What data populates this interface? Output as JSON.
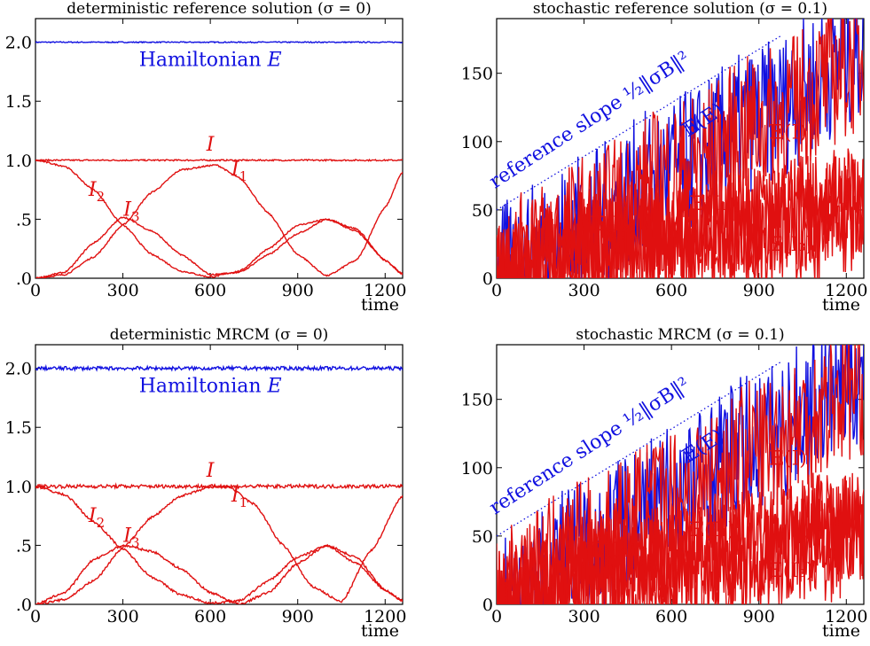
{
  "figure": {
    "colors": {
      "blue": "#1010e0",
      "red": "#e01010",
      "frame": "#000000"
    }
  },
  "chart_data": [
    {
      "id": "tl",
      "type": "line",
      "title": "deterministic reference solution (σ = 0)",
      "xlabel": "time",
      "ylabel": "",
      "xlim": [
        0,
        1260
      ],
      "ylim": [
        0,
        2.2
      ],
      "xticks": [
        0,
        300,
        600,
        900,
        1200
      ],
      "xtick_labels": [
        "0",
        "300",
        "600",
        "900",
        "1200"
      ],
      "yticks": [
        0,
        0.5,
        1.0,
        1.5,
        2.0
      ],
      "ytick_labels": [
        ".0",
        ".5",
        "1.0",
        "1.5",
        "2.0"
      ],
      "series": [
        {
          "name": "Hamiltonian E",
          "color": "blue",
          "noise": 0.003,
          "x": [
            0,
            1260
          ],
          "y": [
            2.0,
            2.0
          ]
        },
        {
          "name": "I",
          "color": "red",
          "noise": 0.004,
          "x": [
            0,
            1260
          ],
          "y": [
            1.0,
            1.0
          ]
        },
        {
          "name": "I1",
          "color": "red",
          "noise": 0.004,
          "x": [
            0,
            100,
            200,
            300,
            400,
            500,
            620,
            700,
            800,
            900,
            1000,
            1100,
            1200,
            1260
          ],
          "y": [
            0.0,
            0.03,
            0.18,
            0.45,
            0.73,
            0.92,
            0.96,
            0.85,
            0.55,
            0.2,
            0.02,
            0.15,
            0.6,
            0.9
          ]
        },
        {
          "name": "I2",
          "color": "red",
          "noise": 0.004,
          "x": [
            0,
            100,
            200,
            300,
            400,
            500,
            600,
            700,
            800,
            900,
            1000,
            1100,
            1200,
            1260
          ],
          "y": [
            1.0,
            0.95,
            0.75,
            0.45,
            0.2,
            0.06,
            0.01,
            0.06,
            0.25,
            0.45,
            0.5,
            0.4,
            0.15,
            0.03
          ]
        },
        {
          "name": "I3",
          "color": "red",
          "noise": 0.004,
          "x": [
            0,
            100,
            200,
            300,
            400,
            500,
            600,
            700,
            800,
            900,
            1000,
            1100,
            1200,
            1260
          ],
          "y": [
            0.0,
            0.05,
            0.3,
            0.52,
            0.4,
            0.2,
            0.03,
            0.05,
            0.2,
            0.38,
            0.5,
            0.42,
            0.15,
            0.04
          ]
        }
      ],
      "annotations": [
        {
          "text": "Hamiltonian",
          "sub": "",
          "italic_tail": "E",
          "color": "blue",
          "x": 600,
          "y": 1.8
        },
        {
          "text": "I",
          "sub": "",
          "color": "red",
          "x": 600,
          "y": 1.08
        },
        {
          "text": "I",
          "sub": "1",
          "color": "red",
          "x": 700,
          "y": 0.87
        },
        {
          "text": "I",
          "sub": "2",
          "color": "red",
          "x": 210,
          "y": 0.7
        },
        {
          "text": "I",
          "sub": "3",
          "color": "red",
          "x": 330,
          "y": 0.53
        }
      ]
    },
    {
      "id": "tr",
      "type": "line",
      "title": "stochastic reference solution (σ = 0.1)",
      "xlabel": "time",
      "ylabel": "",
      "xlim": [
        0,
        1260
      ],
      "ylim": [
        0,
        190
      ],
      "xticks": [
        0,
        300,
        600,
        900,
        1200
      ],
      "xtick_labels": [
        "0",
        "300",
        "600",
        "900",
        "1200"
      ],
      "yticks": [
        0,
        50,
        100,
        150
      ],
      "ytick_labels": [
        "0",
        "50",
        "100",
        "150"
      ],
      "series": [
        {
          "name": "reference slope",
          "color": "blue",
          "dotted": true,
          "x": [
            0,
            980
          ],
          "y": [
            50,
            178
          ]
        },
        {
          "name": "E(E)",
          "color": "blue",
          "noise": 0.4,
          "x": [
            0,
            300,
            600,
            900,
            1260
          ],
          "y": [
            2,
            40,
            80,
            118,
            168
          ]
        },
        {
          "name": "E(I)",
          "color": "red",
          "noise": 0.4,
          "x": [
            0,
            300,
            600,
            900,
            1260
          ],
          "y": [
            1,
            38,
            77,
            113,
            160
          ]
        },
        {
          "name": "E(I1)",
          "color": "red",
          "noise": 0.3,
          "x": [
            0,
            100,
            200,
            300,
            400,
            500,
            600,
            700,
            800,
            900,
            1000,
            1100,
            1260
          ],
          "y": [
            0,
            5,
            15,
            24,
            30,
            35,
            40,
            41,
            41,
            43,
            48,
            52,
            58
          ]
        },
        {
          "name": "E(I2)",
          "color": "red",
          "noise": 0.3,
          "x": [
            0,
            100,
            200,
            300,
            400,
            500,
            600,
            700,
            800,
            900,
            1000,
            1100,
            1260
          ],
          "y": [
            0,
            18,
            22,
            24,
            24,
            24,
            28,
            34,
            40,
            44,
            48,
            52,
            58
          ]
        },
        {
          "name": "E(I3)",
          "color": "red",
          "noise": 0.3,
          "x": [
            0,
            100,
            200,
            300,
            400,
            500,
            600,
            700,
            800,
            900,
            1000,
            1100,
            1260
          ],
          "y": [
            0,
            2,
            8,
            15,
            19,
            22,
            25,
            27,
            30,
            32,
            34,
            36,
            42
          ]
        }
      ],
      "annotations": [
        {
          "text": "reference slope ½‖σB‖²",
          "color": "blue",
          "x": 330,
          "y": 112,
          "rotate": -33
        },
        {
          "text": "𝔼(E)",
          "color": "blue",
          "x": 720,
          "y": 112,
          "rotate": -33
        },
        {
          "text": "𝔼(I)",
          "color": "red",
          "x": 1000,
          "y": 102
        },
        {
          "text": "𝔼(I₁)",
          "color": "red",
          "x": 740,
          "y": 50
        },
        {
          "text": "𝔼(I₂)",
          "color": "red",
          "x": 400,
          "y": 35
        },
        {
          "text": "𝔼(I₃)",
          "color": "red",
          "x": 1010,
          "y": 20
        }
      ]
    },
    {
      "id": "bl",
      "type": "line",
      "title": "deterministic MRCM (σ = 0)",
      "xlabel": "time",
      "ylabel": "",
      "xlim": [
        0,
        1260
      ],
      "ylim": [
        0,
        2.2
      ],
      "xticks": [
        0,
        300,
        600,
        900,
        1200
      ],
      "xtick_labels": [
        "0",
        "300",
        "600",
        "900",
        "1200"
      ],
      "yticks": [
        0,
        0.5,
        1.0,
        1.5,
        2.0
      ],
      "ytick_labels": [
        ".0",
        ".5",
        "1.0",
        "1.5",
        "2.0"
      ],
      "series": [
        {
          "name": "Hamiltonian E",
          "color": "blue",
          "noise": 0.01,
          "x": [
            0,
            1260
          ],
          "y": [
            2.0,
            2.0
          ]
        },
        {
          "name": "I",
          "color": "red",
          "noise": 0.01,
          "x": [
            0,
            1260
          ],
          "y": [
            1.0,
            1.0
          ]
        },
        {
          "name": "I1",
          "color": "red",
          "noise": 0.006,
          "x": [
            0,
            100,
            200,
            300,
            400,
            500,
            600,
            660,
            750,
            850,
            950,
            1050,
            1150,
            1260
          ],
          "y": [
            0.0,
            0.04,
            0.2,
            0.48,
            0.74,
            0.92,
            0.99,
            1.0,
            0.85,
            0.5,
            0.15,
            0.02,
            0.45,
            0.92
          ]
        },
        {
          "name": "I2",
          "color": "red",
          "noise": 0.006,
          "x": [
            0,
            100,
            200,
            300,
            400,
            500,
            600,
            700,
            800,
            900,
            1000,
            1100,
            1200,
            1260
          ],
          "y": [
            1.0,
            0.93,
            0.7,
            0.47,
            0.23,
            0.08,
            0.01,
            0.03,
            0.2,
            0.4,
            0.5,
            0.35,
            0.12,
            0.03
          ]
        },
        {
          "name": "I3",
          "color": "red",
          "noise": 0.006,
          "x": [
            0,
            100,
            200,
            300,
            400,
            500,
            600,
            700,
            800,
            900,
            1000,
            1100,
            1200,
            1260
          ],
          "y": [
            0.0,
            0.1,
            0.38,
            0.5,
            0.45,
            0.3,
            0.1,
            0.0,
            0.1,
            0.35,
            0.5,
            0.4,
            0.12,
            0.03
          ]
        }
      ],
      "annotations": [
        {
          "text": "Hamiltonian",
          "sub": "",
          "italic_tail": "E",
          "color": "blue",
          "x": 600,
          "y": 1.8
        },
        {
          "text": "I",
          "sub": "",
          "color": "red",
          "x": 600,
          "y": 1.08
        },
        {
          "text": "I",
          "sub": "1",
          "color": "red",
          "x": 700,
          "y": 0.87
        },
        {
          "text": "I",
          "sub": "2",
          "color": "red",
          "x": 210,
          "y": 0.7
        },
        {
          "text": "I",
          "sub": "3",
          "color": "red",
          "x": 330,
          "y": 0.53
        }
      ]
    },
    {
      "id": "br",
      "type": "line",
      "title": "stochastic MRCM (σ = 0.1)",
      "xlabel": "time",
      "ylabel": "",
      "xlim": [
        0,
        1260
      ],
      "ylim": [
        0,
        190
      ],
      "xticks": [
        0,
        300,
        600,
        900,
        1200
      ],
      "xtick_labels": [
        "0",
        "300",
        "600",
        "900",
        "1200"
      ],
      "yticks": [
        0,
        50,
        100,
        150
      ],
      "ytick_labels": [
        "0",
        "50",
        "100",
        "150"
      ],
      "series": [
        {
          "name": "reference slope",
          "color": "blue",
          "dotted": true,
          "x": [
            0,
            980
          ],
          "y": [
            50,
            178
          ]
        },
        {
          "name": "E(E)",
          "color": "blue",
          "noise": 0.4,
          "x": [
            0,
            300,
            600,
            900,
            1260
          ],
          "y": [
            2,
            41,
            82,
            120,
            170
          ]
        },
        {
          "name": "E(I)",
          "color": "red",
          "noise": 0.4,
          "x": [
            0,
            300,
            600,
            900,
            1260
          ],
          "y": [
            1,
            39,
            78,
            115,
            161
          ]
        },
        {
          "name": "E(I1)",
          "color": "red",
          "noise": 0.3,
          "x": [
            0,
            100,
            200,
            300,
            400,
            500,
            600,
            700,
            800,
            900,
            1000,
            1100,
            1260
          ],
          "y": [
            0,
            5,
            15,
            25,
            32,
            36,
            40,
            41,
            42,
            44,
            48,
            55,
            58
          ]
        },
        {
          "name": "E(I2)",
          "color": "red",
          "noise": 0.3,
          "x": [
            0,
            100,
            200,
            300,
            400,
            500,
            600,
            700,
            800,
            900,
            1000,
            1100,
            1260
          ],
          "y": [
            0,
            18,
            24,
            25,
            26,
            26,
            28,
            34,
            40,
            46,
            50,
            58,
            58
          ]
        },
        {
          "name": "E(I3)",
          "color": "red",
          "noise": 0.3,
          "x": [
            0,
            100,
            200,
            300,
            400,
            500,
            600,
            700,
            800,
            900,
            1000,
            1100,
            1260
          ],
          "y": [
            0,
            2,
            8,
            16,
            20,
            23,
            24,
            26,
            30,
            33,
            36,
            38,
            43
          ]
        }
      ],
      "annotations": [
        {
          "text": "reference slope ½‖σB‖²",
          "color": "blue",
          "x": 330,
          "y": 112,
          "rotate": -33
        },
        {
          "text": "𝔼(E)",
          "color": "blue",
          "x": 720,
          "y": 112,
          "rotate": -33
        },
        {
          "text": "𝔼(I)",
          "color": "red",
          "x": 1000,
          "y": 102
        },
        {
          "text": "𝔼(I₁)",
          "color": "red",
          "x": 740,
          "y": 50
        },
        {
          "text": "𝔼(I₂)",
          "color": "red",
          "x": 400,
          "y": 35
        },
        {
          "text": "𝔼(I₃)",
          "color": "red",
          "x": 1010,
          "y": 20
        }
      ]
    }
  ]
}
